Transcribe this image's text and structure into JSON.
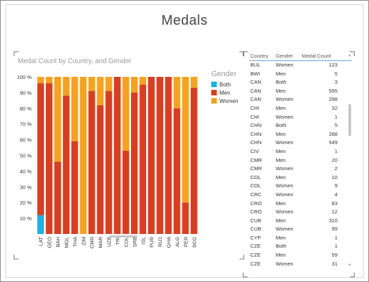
{
  "page": {
    "title": "Medals"
  },
  "chart": {
    "title": "Medal Count by Country, and Gender",
    "legend_title": "Gender",
    "colors": {
      "Both": "#13b5ea",
      "Men": "#dd3c1e",
      "Women": "#f9a11b"
    }
  },
  "chart_data": {
    "type": "bar",
    "stacked": true,
    "percent": true,
    "title": "Medal Count by Country, and Gender",
    "xlabel": "",
    "ylabel": "",
    "ylim": [
      0,
      100
    ],
    "yticks": [
      "10 %",
      "20 %",
      "30 %",
      "40 %",
      "50 %",
      "60 %",
      "70 %",
      "80 %",
      "90 %",
      "100 %"
    ],
    "legend": "right",
    "categories": [
      "LAT",
      "GEO",
      "BAH",
      "MGL",
      "THA",
      "ZIM",
      "CMR",
      "MAR",
      "UZB",
      "TRI",
      "COL",
      "SRB",
      "ISL",
      "PUR",
      "RU1",
      "GHA",
      "ALG",
      "PER",
      "SCG"
    ],
    "series": [
      {
        "name": "Both",
        "values": [
          12,
          0,
          0,
          0,
          0,
          0,
          0,
          0,
          0,
          0,
          0,
          0,
          0,
          0,
          0,
          0,
          0,
          0,
          0
        ]
      },
      {
        "name": "Men",
        "values": [
          84,
          96,
          46,
          88,
          59,
          0,
          91,
          82,
          91,
          100,
          53,
          90,
          95,
          100,
          100,
          100,
          80,
          20,
          93
        ]
      },
      {
        "name": "Women",
        "values": [
          4,
          4,
          54,
          12,
          41,
          100,
          9,
          18,
          9,
          0,
          47,
          10,
          5,
          0,
          0,
          0,
          20,
          80,
          7
        ]
      }
    ]
  },
  "table": {
    "headers": {
      "country": "Country",
      "gender": "Gender",
      "count": "Medal Count"
    },
    "rows": [
      {
        "country": "BUL",
        "gender": "Women",
        "count": "123"
      },
      {
        "country": "BWI",
        "gender": "Men",
        "count": "5"
      },
      {
        "country": "CAN",
        "gender": "Both",
        "count": "3"
      },
      {
        "country": "CAN",
        "gender": "Men",
        "count": "595"
      },
      {
        "country": "CAN",
        "gender": "Women",
        "count": "298"
      },
      {
        "country": "CHI",
        "gender": "Men",
        "count": "32"
      },
      {
        "country": "CHI",
        "gender": "Women",
        "count": "1"
      },
      {
        "country": "CHN",
        "gender": "Both",
        "count": "5"
      },
      {
        "country": "CHN",
        "gender": "Men",
        "count": "268"
      },
      {
        "country": "CHN",
        "gender": "Women",
        "count": "549"
      },
      {
        "country": "CIV",
        "gender": "Men",
        "count": "1"
      },
      {
        "country": "CMR",
        "gender": "Men",
        "count": "20"
      },
      {
        "country": "CMR",
        "gender": "Women",
        "count": "2"
      },
      {
        "country": "COL",
        "gender": "Men",
        "count": "10"
      },
      {
        "country": "COL",
        "gender": "Women",
        "count": "9"
      },
      {
        "country": "CRC",
        "gender": "Women",
        "count": "4"
      },
      {
        "country": "CRO",
        "gender": "Men",
        "count": "83"
      },
      {
        "country": "CRO",
        "gender": "Women",
        "count": "12"
      },
      {
        "country": "CUB",
        "gender": "Men",
        "count": "310"
      },
      {
        "country": "CUB",
        "gender": "Women",
        "count": "99"
      },
      {
        "country": "CYP",
        "gender": "Men",
        "count": "1"
      },
      {
        "country": "CZE",
        "gender": "Both",
        "count": "1"
      },
      {
        "country": "CZE",
        "gender": "Men",
        "count": "59"
      },
      {
        "country": "CZE",
        "gender": "Women",
        "count": "31"
      }
    ]
  }
}
